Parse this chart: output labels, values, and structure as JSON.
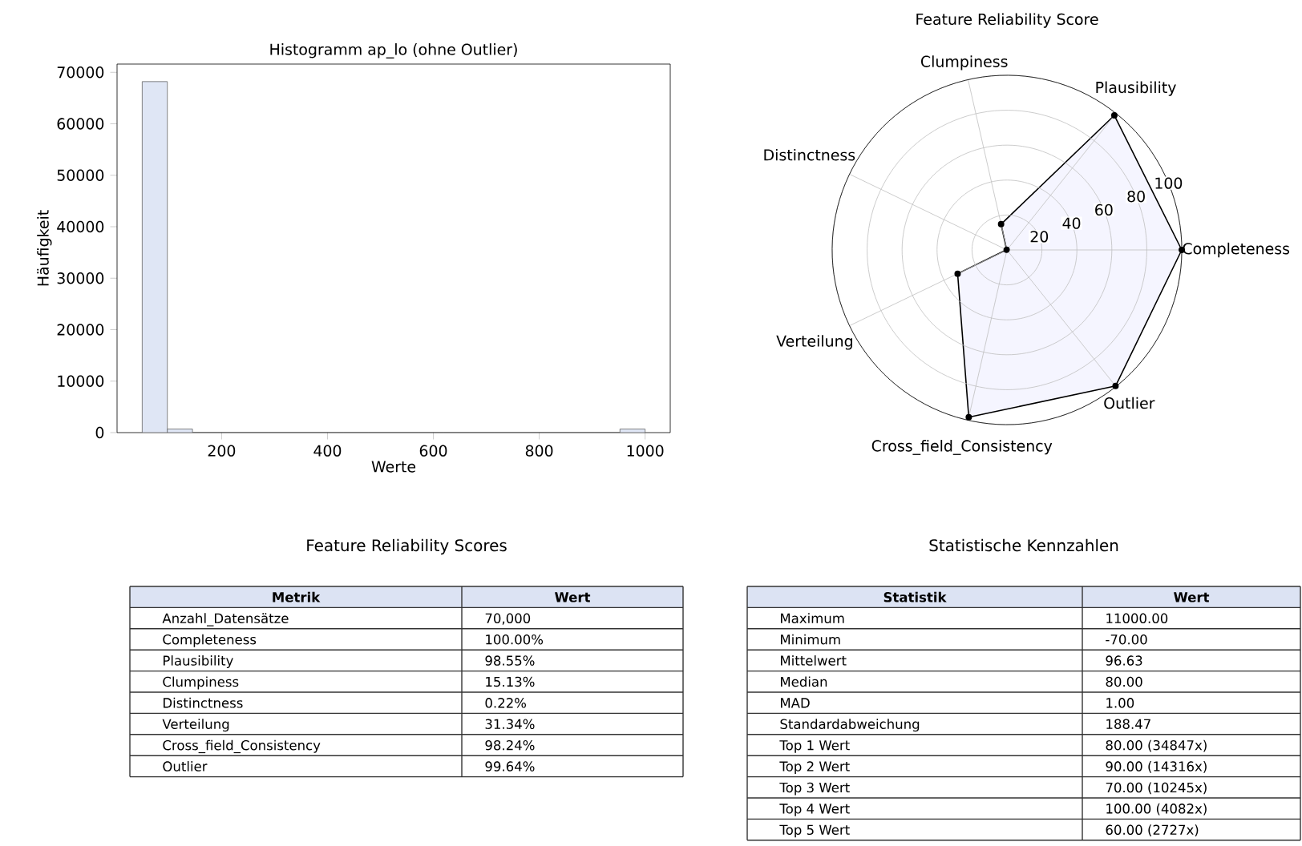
{
  "chart_data": [
    {
      "type": "histogram",
      "title": "Histogramm ap_lo (ohne Outlier)",
      "xlabel": "Werte",
      "ylabel": "Häufigkeit",
      "bins": [
        50,
        97.5,
        145,
        192.5,
        240,
        287.5,
        335,
        382.5,
        430,
        477.5,
        525,
        572.5,
        620,
        667.5,
        715,
        762.5,
        810,
        857.5,
        905,
        952.5,
        1000
      ],
      "values": [
        68200,
        700,
        0,
        0,
        0,
        0,
        0,
        0,
        0,
        0,
        0,
        0,
        0,
        0,
        0,
        0,
        0,
        0,
        0,
        700
      ],
      "color": "#dfe6f5",
      "xlim": [
        2.5,
        1047.5
      ],
      "ylim": [
        0,
        71600
      ],
      "xticks": [
        200,
        400,
        600,
        800,
        1000
      ],
      "yticks": [
        0,
        10000,
        20000,
        30000,
        40000,
        50000,
        60000,
        70000
      ]
    },
    {
      "type": "radar",
      "title": "Feature Reliability Score",
      "categories": [
        "Clumpiness",
        "Plausibility",
        "Completeness",
        "Outlier",
        "Cross_field_Consistency",
        "Verteilung",
        "Distinctness"
      ],
      "series": [
        {
          "color": "#000000",
          "values": [
            15.13,
            98.55,
            100,
            99.64,
            98.24,
            31.34,
            0.22
          ]
        }
      ],
      "ylim": [
        0,
        100
      ],
      "yticks": [
        20,
        40,
        60,
        80,
        100
      ],
      "grid": true,
      "marker": "circle"
    },
    {
      "type": "other",
      "title": "Feature Reliability Scores",
      "categories": [
        "Metrik",
        "Wert"
      ],
      "y_categories": [
        "Anzahl_Datensätze",
        "Completeness",
        "Plausibility",
        "Clumpiness",
        "Distinctness",
        "Verteilung",
        "Cross_field_Consistency",
        "Outlier"
      ],
      "cell_labels": [
        [
          "70,000"
        ],
        [
          "100.00%"
        ],
        [
          "98.55%"
        ],
        [
          "15.13%"
        ],
        [
          "0.22%"
        ],
        [
          "31.34%"
        ],
        [
          "98.24%"
        ],
        [
          "99.64%"
        ]
      ]
    },
    {
      "type": "other",
      "title": "Statistische Kennzahlen",
      "categories": [
        "Statistik",
        "Wert"
      ],
      "y_categories": [
        "Maximum",
        "Minimum",
        "Mittelwert",
        "Median",
        "MAD",
        "Standardabweichung",
        "Top 1 Wert",
        "Top 2 Wert",
        "Top 3 Wert",
        "Top 4 Wert",
        "Top 5 Wert"
      ],
      "cell_labels": [
        [
          "11000.00"
        ],
        [
          "-70.00"
        ],
        [
          "96.63"
        ],
        [
          "80.00"
        ],
        [
          "1.00"
        ],
        [
          "188.47"
        ],
        [
          "80.00 (34847x)"
        ],
        [
          "90.00 (14316x)"
        ],
        [
          "70.00 (10245x)"
        ],
        [
          "100.00 (4082x)"
        ],
        [
          "60.00 (2727x)"
        ]
      ]
    }
  ]
}
